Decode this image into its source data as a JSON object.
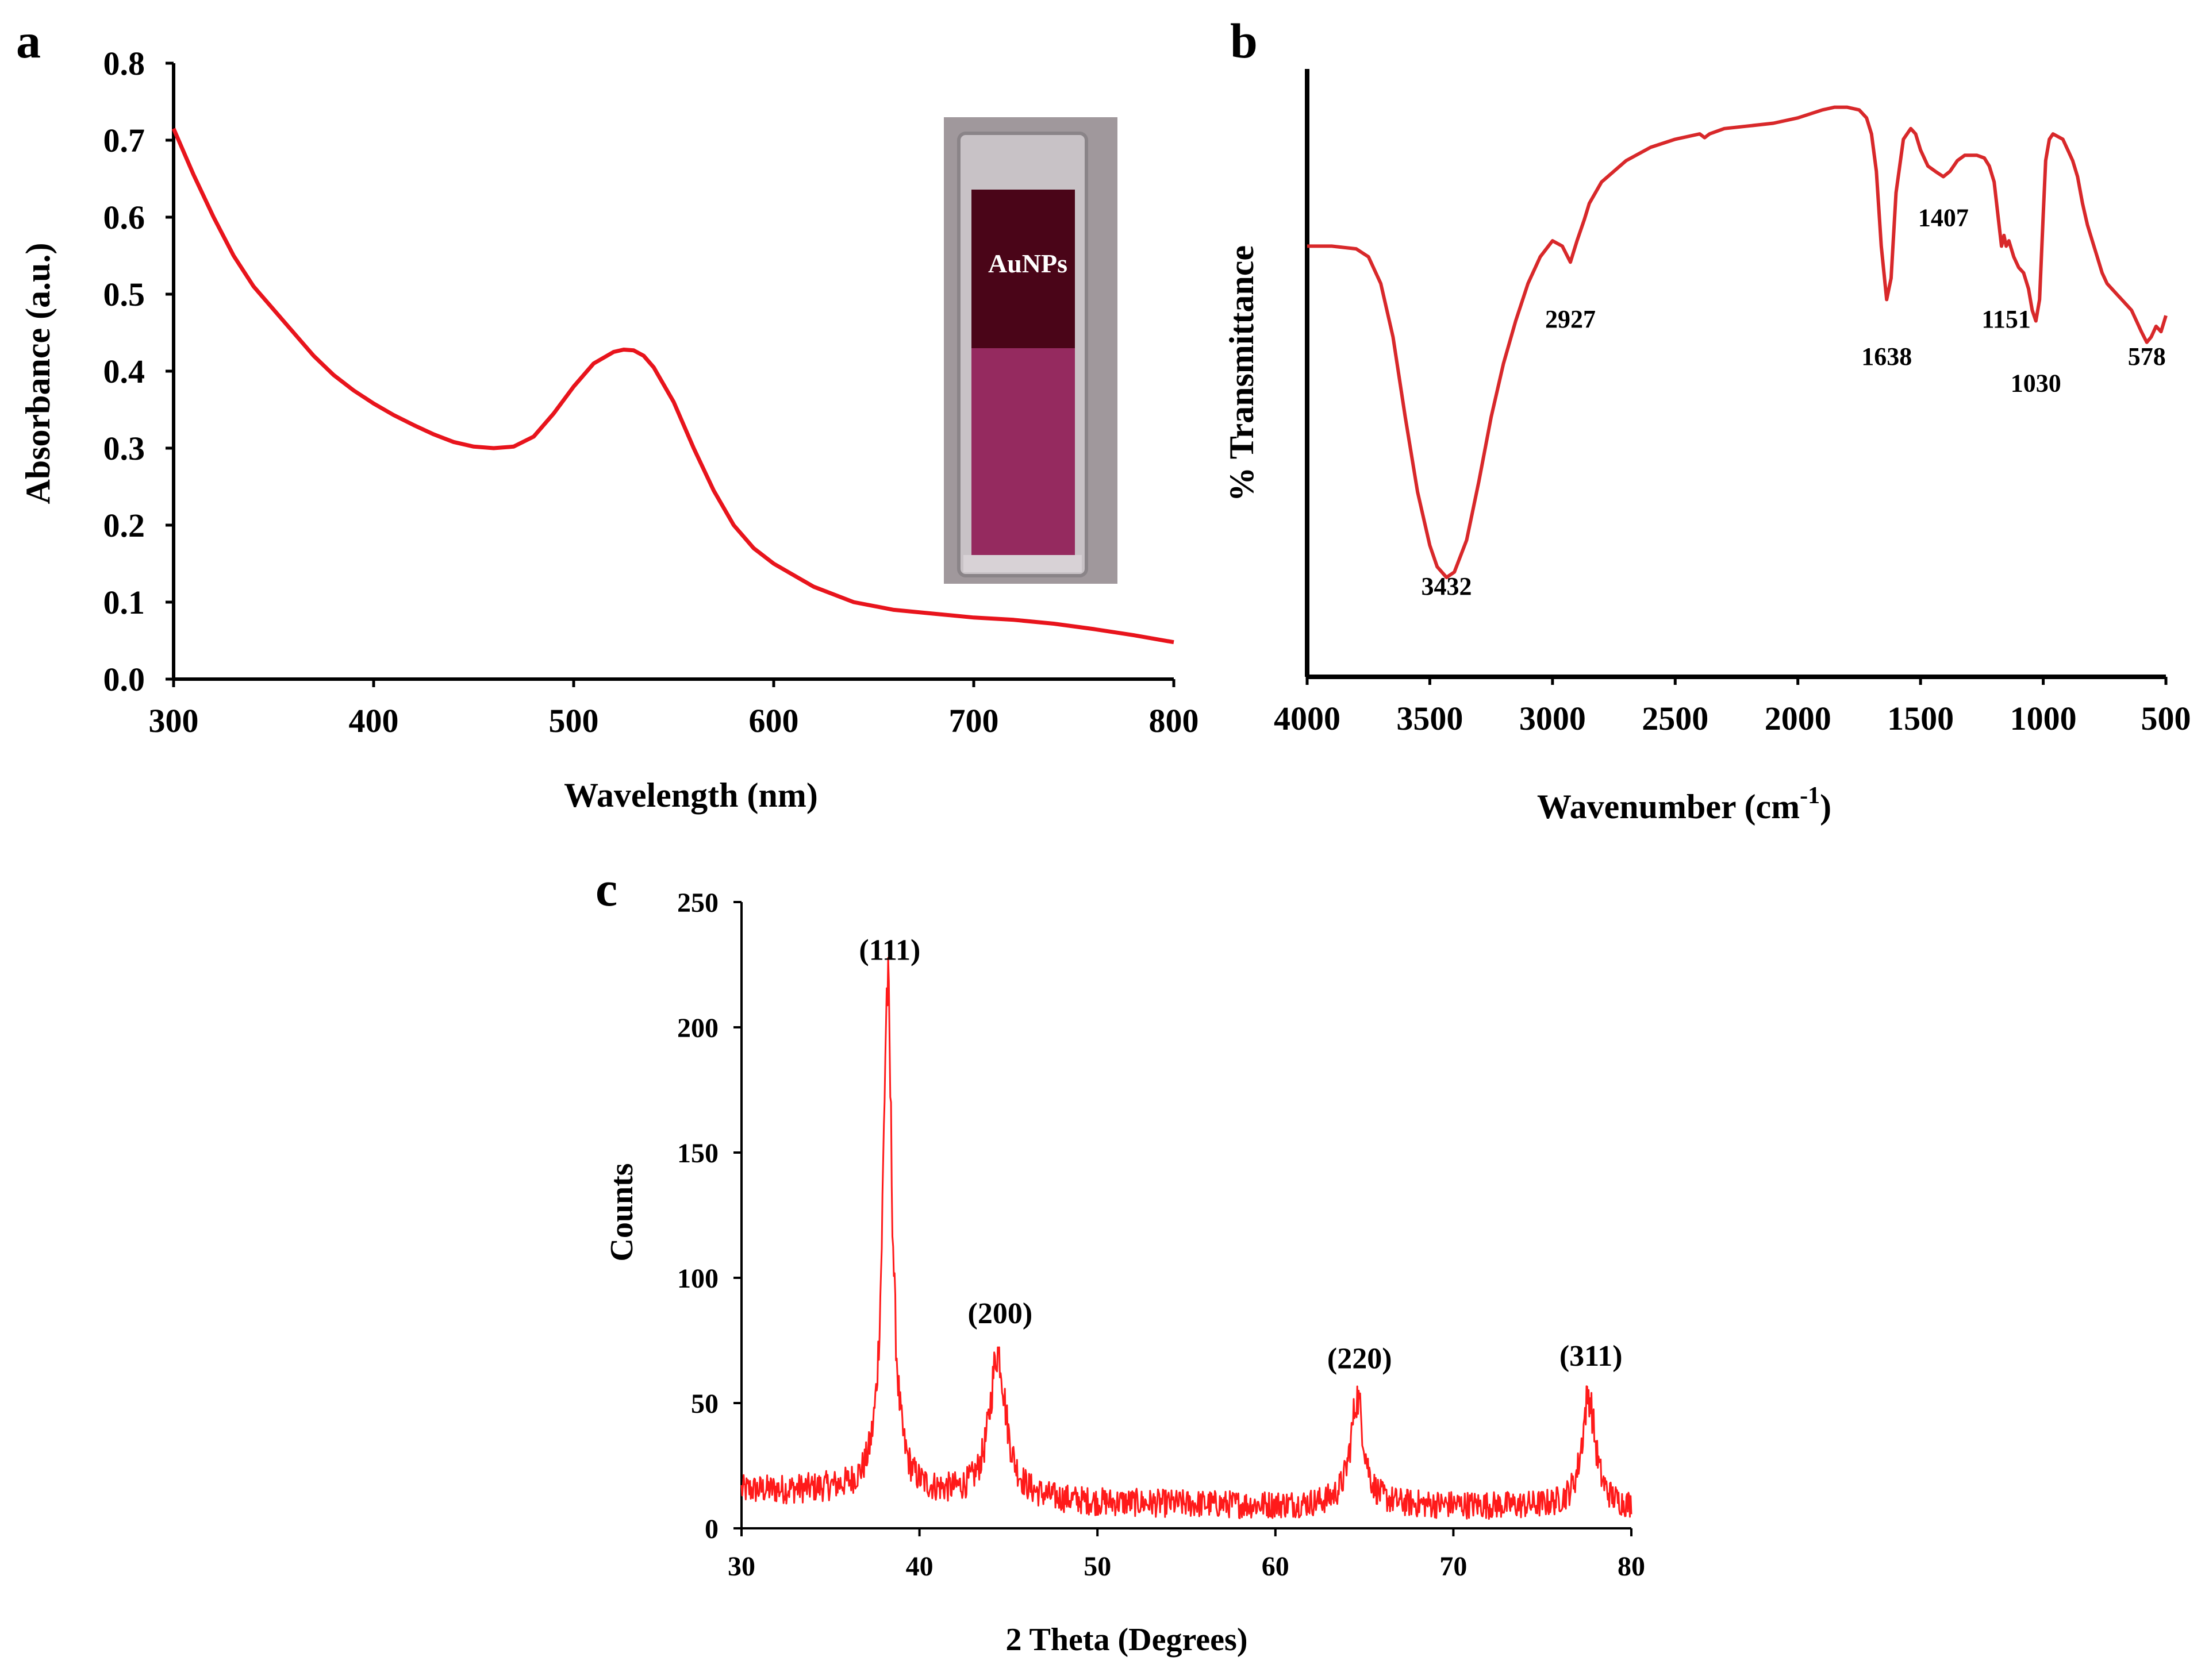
{
  "chart_data": [
    {
      "panel": "a",
      "type": "line",
      "xlabel": "Wavelength (nm)",
      "ylabel": "Absorbance (a.u.)",
      "xlim": [
        300,
        800
      ],
      "ylim": [
        0.0,
        0.8
      ],
      "xticks": [
        "300",
        "400",
        "500",
        "600",
        "700",
        "800"
      ],
      "yticks": [
        "0.0",
        "0.1",
        "0.2",
        "0.3",
        "0.4",
        "0.5",
        "0.6",
        "0.7",
        "0.8"
      ],
      "inset_label": "AuNPs",
      "color": "#e8141c",
      "series": [
        {
          "x": [
            300,
            310,
            320,
            330,
            340,
            350,
            360,
            370,
            380,
            390,
            400,
            410,
            420,
            430,
            440,
            450,
            460,
            470,
            480,
            490,
            500,
            510,
            520,
            525,
            530,
            535,
            540,
            550,
            560,
            570,
            580,
            590,
            600,
            620,
            640,
            660,
            680,
            700,
            720,
            740,
            760,
            780,
            800
          ],
          "y": [
            0.715,
            0.655,
            0.6,
            0.55,
            0.51,
            0.48,
            0.45,
            0.42,
            0.395,
            0.375,
            0.358,
            0.343,
            0.33,
            0.318,
            0.308,
            0.302,
            0.3,
            0.302,
            0.315,
            0.345,
            0.38,
            0.41,
            0.425,
            0.428,
            0.427,
            0.42,
            0.405,
            0.36,
            0.3,
            0.245,
            0.2,
            0.17,
            0.15,
            0.12,
            0.1,
            0.09,
            0.085,
            0.08,
            0.077,
            0.072,
            0.065,
            0.057,
            0.048
          ]
        }
      ]
    },
    {
      "panel": "b",
      "type": "line",
      "xlabel": "Wavenumber (cm",
      "xlabel_sup": "-1",
      "xlabel_close": ")",
      "ylabel": "% Transmittance",
      "xlim": [
        4000,
        500
      ],
      "ylim": [
        0,
        100
      ],
      "xticks": [
        "4000",
        "3500",
        "3000",
        "2500",
        "2000",
        "1500",
        "1000",
        "500"
      ],
      "color": "#d8282a",
      "peak_labels": [
        {
          "text": "3432",
          "x": 3432,
          "y": 10
        },
        {
          "text": "2927",
          "x": 2927,
          "y": 60
        },
        {
          "text": "1638",
          "x": 1638,
          "y": 53
        },
        {
          "text": "1407",
          "x": 1407,
          "y": 79
        },
        {
          "text": "1151",
          "x": 1151,
          "y": 60
        },
        {
          "text": "1030",
          "x": 1030,
          "y": 48
        },
        {
          "text": "578",
          "x": 578,
          "y": 53
        }
      ],
      "series": [
        {
          "x": [
            4000,
            3900,
            3800,
            3750,
            3700,
            3650,
            3600,
            3550,
            3500,
            3470,
            3432,
            3400,
            3350,
            3300,
            3250,
            3200,
            3150,
            3100,
            3050,
            3000,
            2960,
            2927,
            2900,
            2870,
            2850,
            2800,
            2700,
            2600,
            2500,
            2400,
            2380,
            2360,
            2300,
            2200,
            2100,
            2000,
            1900,
            1850,
            1800,
            1750,
            1720,
            1700,
            1680,
            1660,
            1638,
            1620,
            1600,
            1570,
            1540,
            1520,
            1500,
            1470,
            1440,
            1407,
            1380,
            1350,
            1320,
            1300,
            1270,
            1240,
            1220,
            1200,
            1180,
            1170,
            1160,
            1151,
            1140,
            1120,
            1100,
            1080,
            1060,
            1045,
            1030,
            1015,
            1000,
            990,
            975,
            960,
            940,
            920,
            900,
            880,
            860,
            840,
            820,
            800,
            780,
            760,
            740,
            720,
            700,
            680,
            660,
            640,
            620,
            600,
            578,
            560,
            540,
            520,
            500
          ],
          "y": [
            72,
            72,
            71.5,
            70,
            65,
            55,
            40,
            26,
            16,
            12,
            10,
            11,
            17,
            28,
            40,
            50,
            58,
            65,
            70,
            73,
            72,
            69,
            73,
            77,
            80,
            84,
            88,
            90.5,
            92,
            93,
            92.3,
            93,
            94,
            94.5,
            95,
            96,
            97.5,
            98,
            98,
            97.5,
            96,
            93,
            86,
            72,
            62,
            66,
            82,
            92,
            94,
            93,
            90,
            87,
            86,
            85,
            86,
            88,
            89,
            89,
            89,
            88.5,
            87,
            84,
            76,
            72,
            74,
            72,
            73,
            70,
            68,
            67,
            64,
            60,
            58,
            62,
            78,
            88,
            92,
            93,
            92.5,
            92,
            90,
            88,
            85,
            80,
            76,
            73,
            70,
            67,
            65,
            64,
            63,
            62,
            61,
            60,
            58,
            56,
            54,
            55,
            57,
            56,
            59
          ]
        }
      ]
    },
    {
      "panel": "c",
      "type": "line",
      "xlabel": "2 Theta (Degrees)",
      "ylabel": "Counts",
      "xlim": [
        30,
        80
      ],
      "ylim": [
        0,
        250
      ],
      "xticks": [
        "30",
        "40",
        "50",
        "60",
        "70",
        "80"
      ],
      "yticks": [
        "0",
        "50",
        "100",
        "150",
        "200",
        "250"
      ],
      "color": "#ff1a1a",
      "peaks": [
        {
          "label": "(111)",
          "x": 38.2,
          "y": 215
        },
        {
          "label": "(200)",
          "x": 44.4,
          "y": 70
        },
        {
          "label": "(220)",
          "x": 64.6,
          "y": 52
        },
        {
          "label": "(311)",
          "x": 77.6,
          "y": 53
        }
      ],
      "baseline": {
        "x": [
          30,
          35,
          40,
          50,
          60,
          70,
          80
        ],
        "y": [
          15,
          15,
          13,
          10,
          9,
          9,
          8
        ]
      }
    }
  ]
}
